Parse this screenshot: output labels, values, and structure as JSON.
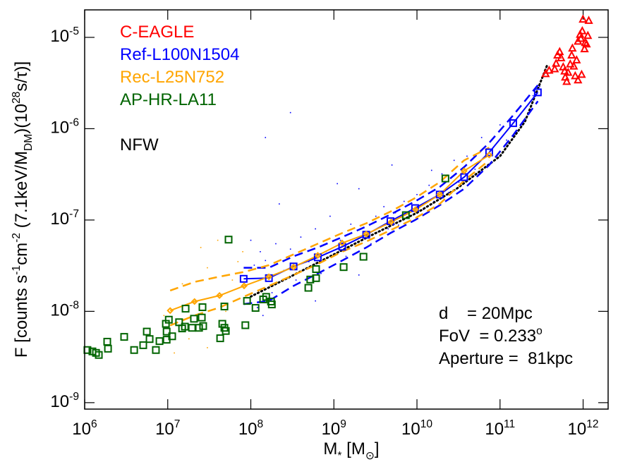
{
  "chart_data": {
    "type": "scatter",
    "xlabel": "M_{*} [M_{⊙}]",
    "ylabel": "F [counts s^{-1}cm^{-2} (7.1keV/M_{DM})(10^{28}s/τ)]",
    "xscale": "log",
    "yscale": "log",
    "xlim": [
      1000000.0,
      2000000000000.0
    ],
    "ylim": [
      8.5e-10,
      2e-05
    ],
    "xticks": [
      {
        "value": 1000000.0,
        "label": "10^{6}"
      },
      {
        "value": 10000000.0,
        "label": "10^{7}"
      },
      {
        "value": 100000000.0,
        "label": "10^{8}"
      },
      {
        "value": 1000000000.0,
        "label": "10^{9}"
      },
      {
        "value": 10000000000.0,
        "label": "10^{10}"
      },
      {
        "value": 100000000000.0,
        "label": "10^{11}"
      },
      {
        "value": 1000000000000.0,
        "label": "10^{12}"
      }
    ],
    "yticks": [
      {
        "value": 1e-09,
        "label": "10^{-9}"
      },
      {
        "value": 1e-08,
        "label": "10^{-8}"
      },
      {
        "value": 1e-07,
        "label": "10^{-7}"
      },
      {
        "value": 1e-06,
        "label": "10^{-6}"
      },
      {
        "value": 1e-05,
        "label": "10^{-5}"
      }
    ],
    "legend": "upper left",
    "series": [
      {
        "name": "C-EAGLE",
        "color": "#ff0000",
        "marker": "triangle",
        "x": [
          353000000000.0,
          390000000000.0,
          455000000000.0,
          473000000000.0,
          492000000000.0,
          522000000000.0,
          543000000000.0,
          576000000000.0,
          599000000000.0,
          610000000000.0,
          635000000000.0,
          660000000000.0,
          700000000000.0,
          728000000000.0,
          743000000000.0,
          772000000000.0,
          803000000000.0,
          835000000000.0,
          868000000000.0,
          920000000000.0,
          940000000000.0,
          977000000000.0,
          1040000000000.0,
          1060000000000.0,
          1100000000000.0,
          1140000000000.0,
          1170000000000.0,
          996000000000.0,
          960000000000.0,
          868000000000.0
        ],
        "values": [
          3.97e-06,
          4.33e-06,
          4.49e-06,
          5.16e-06,
          6.35e-06,
          6.93e-06,
          5.93e-06,
          4.72e-06,
          4.25e-06,
          3.64e-06,
          3.27e-06,
          4.11e-06,
          5.07e-06,
          6.35e-06,
          7.57e-06,
          4.81e-06,
          3.77e-06,
          5.62e-06,
          9e-06,
          1.07e-05,
          9.66e-06,
          1.17e-05,
          7.43e-06,
          8.7e-06,
          8.4e-06,
          1.04e-05,
          1.52e-05,
          1.57e-05,
          3.9e-06,
          3.39e-06
        ]
      },
      {
        "name": "Ref-L100N1504",
        "color": "#0000ff",
        "marker": "square",
        "line": true,
        "x": [
          82000000.0,
          165000000.0,
          327000000.0,
          640000000.0,
          1260000000.0,
          2450000000.0,
          4800000000.0,
          9500000000.0,
          18800000000.0,
          37000000000.0,
          74000000000.0,
          144000000000.0,
          285000000000.0
        ],
        "values": [
          2.27e-08,
          2.31e-08,
          3.1e-08,
          3.9e-08,
          5.1e-08,
          6.9e-08,
          9.7e-08,
          1.35e-07,
          1.9e-07,
          2.95e-07,
          5.5e-07,
          1.15e-06,
          2.5e-06
        ],
        "upper": [
          3e-08,
          3e-08,
          4e-08,
          5e-08,
          6.5e-08,
          8.5e-08,
          1.15e-07,
          1.6e-07,
          2.3e-07,
          3.8e-07,
          7e-07,
          1.4e-06,
          3e-06
        ],
        "lower": [
          1.2e-08,
          1.3e-08,
          1.9e-08,
          2.6e-08,
          3.6e-08,
          5e-08,
          7.2e-08,
          1e-07,
          1.45e-07,
          2.2e-07,
          4e-07,
          8.5e-07,
          2e-06
        ],
        "cloud_x": [
          110000000.0,
          130000000.0,
          150000000.0,
          120000000.0,
          140000000.0,
          180000000.0,
          200000000.0,
          250000000.0,
          220000000.0,
          300000000.0,
          350000000.0,
          400000000.0,
          450000000.0,
          500000000.0,
          600000000.0,
          700000000.0,
          800000000.0,
          900000000.0,
          1000000000.0,
          1200000000.0,
          1400000000.0,
          1600000000.0,
          1800000000.0,
          2000000000.0,
          2300000000.0,
          2800000000.0,
          3200000000.0,
          3600000000.0,
          4000000000.0,
          4500000000.0,
          5500000000.0,
          6000000000.0,
          7000000000.0,
          8000000000.0,
          10000000000.0,
          12000000000.0,
          14000000000.0,
          16000000000.0,
          20000000000.0,
          24000000000.0,
          28000000000.0,
          32000000000.0,
          40000000000.0,
          50000000000.0,
          60000000000.0,
          80000000000.0,
          100000000000.0,
          120000000000.0,
          160000000000.0,
          200000000000.0,
          250000000000.0,
          300000000000.0,
          150000000.0,
          300000000.0,
          5000000000.0,
          100000000.0,
          2000000000.0,
          15000000000.0,
          600000000.0,
          1100000000.0
        ],
        "cloud_y": [
          3.2e-08,
          4.5e-08,
          3.6e-08,
          1.1e-08,
          9e-09,
          1.6e-08,
          5.5e-08,
          2.8e-08,
          1.5e-07,
          4.8e-08,
          2.2e-08,
          6.5e-08,
          1.8e-08,
          3.5e-08,
          8e-08,
          2.6e-08,
          4.5e-08,
          1.1e-07,
          3.2e-08,
          6e-08,
          4e-08,
          9e-08,
          5.2e-08,
          2.2e-07,
          7e-08,
          5.5e-08,
          1.1e-07,
          7.5e-08,
          1.4e-07,
          8e-08,
          1.2e-07,
          8.8e-08,
          1.6e-07,
          1.05e-07,
          1.9e-07,
          1.3e-07,
          2.4e-07,
          1.6e-07,
          3.2e-07,
          2e-07,
          4.5e-07,
          2.6e-07,
          5e-07,
          3.6e-07,
          8e-07,
          5.2e-07,
          1.1e-06,
          7.5e-07,
          1.6e-06,
          1.3e-06,
          2.3e-06,
          2.9e-06,
          8e-07,
          1.5e-06,
          4e-07,
          6e-08,
          2.5e-08,
          3.5e-07,
          1.3e-08,
          2.5e-07
        ]
      },
      {
        "name": "Rec-L25N752",
        "color": "#ffa500",
        "marker": "diamond",
        "line": true,
        "x": [
          10700000.0,
          21000000.0,
          42000000.0,
          83000000.0,
          165000000.0,
          327000000.0,
          640000000.0,
          1260000000.0,
          2450000000.0,
          4900000000.0,
          9600000000.0,
          18800000000.0,
          37000000000.0,
          74000000000.0
        ],
        "values": [
          1.02e-08,
          1.28e-08,
          1.49e-08,
          1.9e-08,
          2.39e-08,
          3.05e-08,
          4.1e-08,
          5.6e-08,
          7e-08,
          9.5e-08,
          1.3e-07,
          1.9e-07,
          3.45e-07,
          5.15e-07
        ],
        "upper": [
          1.69e-08,
          2.1e-08,
          2.4e-08,
          2.7e-08,
          3.2e-08,
          4.2e-08,
          5.5e-08,
          7.2e-08,
          9.2e-08,
          1.25e-07,
          1.75e-07,
          2.6e-07,
          4.5e-07,
          6.2e-07
        ],
        "lower": [
          7e-09,
          9e-09,
          1.1e-08,
          1.45e-08,
          1.9e-08,
          2.5e-08,
          3.3e-08,
          4.5e-08,
          5.8e-08,
          7.8e-08,
          1.05e-07,
          1.5e-07,
          2.7e-07,
          4.5e-07
        ],
        "cloud_x": [
          25000000.0,
          30000000.0,
          40000000.0,
          60000000.0,
          15000000.0,
          50000000.0,
          30000000.0,
          70000000.0,
          12000000.0,
          9000000.0,
          18000000.0,
          80000000.0
        ],
        "cloud_y": [
          5e-08,
          3e-08,
          6e-08,
          2.2e-08,
          2e-08,
          1e-08,
          4e-09,
          3.5e-08,
          3.5e-09,
          9e-09,
          5e-09,
          4.5e-08
        ]
      },
      {
        "name": "AP-HR-LA11",
        "color": "#006400",
        "marker": "square",
        "x": [
          1080000.0,
          1240000.0,
          1370000.0,
          1480000.0,
          1870000.0,
          1910000.0,
          2990000.0,
          3940000.0,
          5070000.0,
          5600000.0,
          6050000.0,
          7200000.0,
          7960000.0,
          9500000.0,
          9700000.0,
          9700000.0,
          10300000.0,
          11300000.0,
          13700000.0,
          14900000.0,
          16100000.0,
          16400000.0,
          19600000.0,
          20700000.0,
          23800000.0,
          25700000.0,
          26200000.0,
          26700000.0,
          42800000.0,
          45400000.0,
          48100000.0,
          48100000.0,
          50000000.0,
          54000000.0,
          86000000.0,
          90000000.0,
          114000000.0,
          141000000.0,
          153000000.0,
          179000000.0,
          175000000.0,
          493000000.0,
          520000000.0,
          610000000.0,
          610000000.0,
          1310000000.0,
          2270000000.0,
          7350000000.0,
          22000000000.0
        ],
        "values": [
          3.77e-09,
          3.64e-09,
          3.51e-09,
          3.33e-09,
          4.65e-09,
          3.9e-09,
          5.25e-09,
          3.77e-09,
          4.26e-09,
          6e-09,
          4.97e-09,
          3.77e-09,
          4.72e-09,
          7.3e-09,
          6e-09,
          4.89e-09,
          8.1e-09,
          5.33e-09,
          7.6e-09,
          6.5e-09,
          6.8e-09,
          1.07e-08,
          6.6e-09,
          8.3e-09,
          6.6e-09,
          8.55e-09,
          1.11e-08,
          6.9e-09,
          5.07e-09,
          7.3e-09,
          6.6e-09,
          1.13e-08,
          6.1e-09,
          6.1e-08,
          7.05e-09,
          1.3e-08,
          1.09e-08,
          1.35e-08,
          1.44e-08,
          1.19e-08,
          1.28e-08,
          1.81e-08,
          2.23e-08,
          2.31e-08,
          2.9e-08,
          3.05e-08,
          3.96e-08,
          1.13e-07,
          2.85e-07
        ]
      }
    ],
    "curve": {
      "color": "#000000",
      "x": [
        100000000.0,
        300000000.0,
        1000000000.0,
        3000000000.0,
        10000000000.0,
        30000000000.0,
        100000000000.0,
        200000000000.0,
        367000000000.0
      ],
      "values": [
        1.45e-08,
        2.4e-08,
        4.2e-08,
        7e-08,
        1.2e-07,
        2.2e-07,
        5e-07,
        1.2e-06,
        4.9e-06
      ]
    },
    "annotations": [
      "NFW",
      "d    = 20Mpc",
      "FoV  = 0.233^{o}",
      "Aperture =  81kpc"
    ]
  }
}
